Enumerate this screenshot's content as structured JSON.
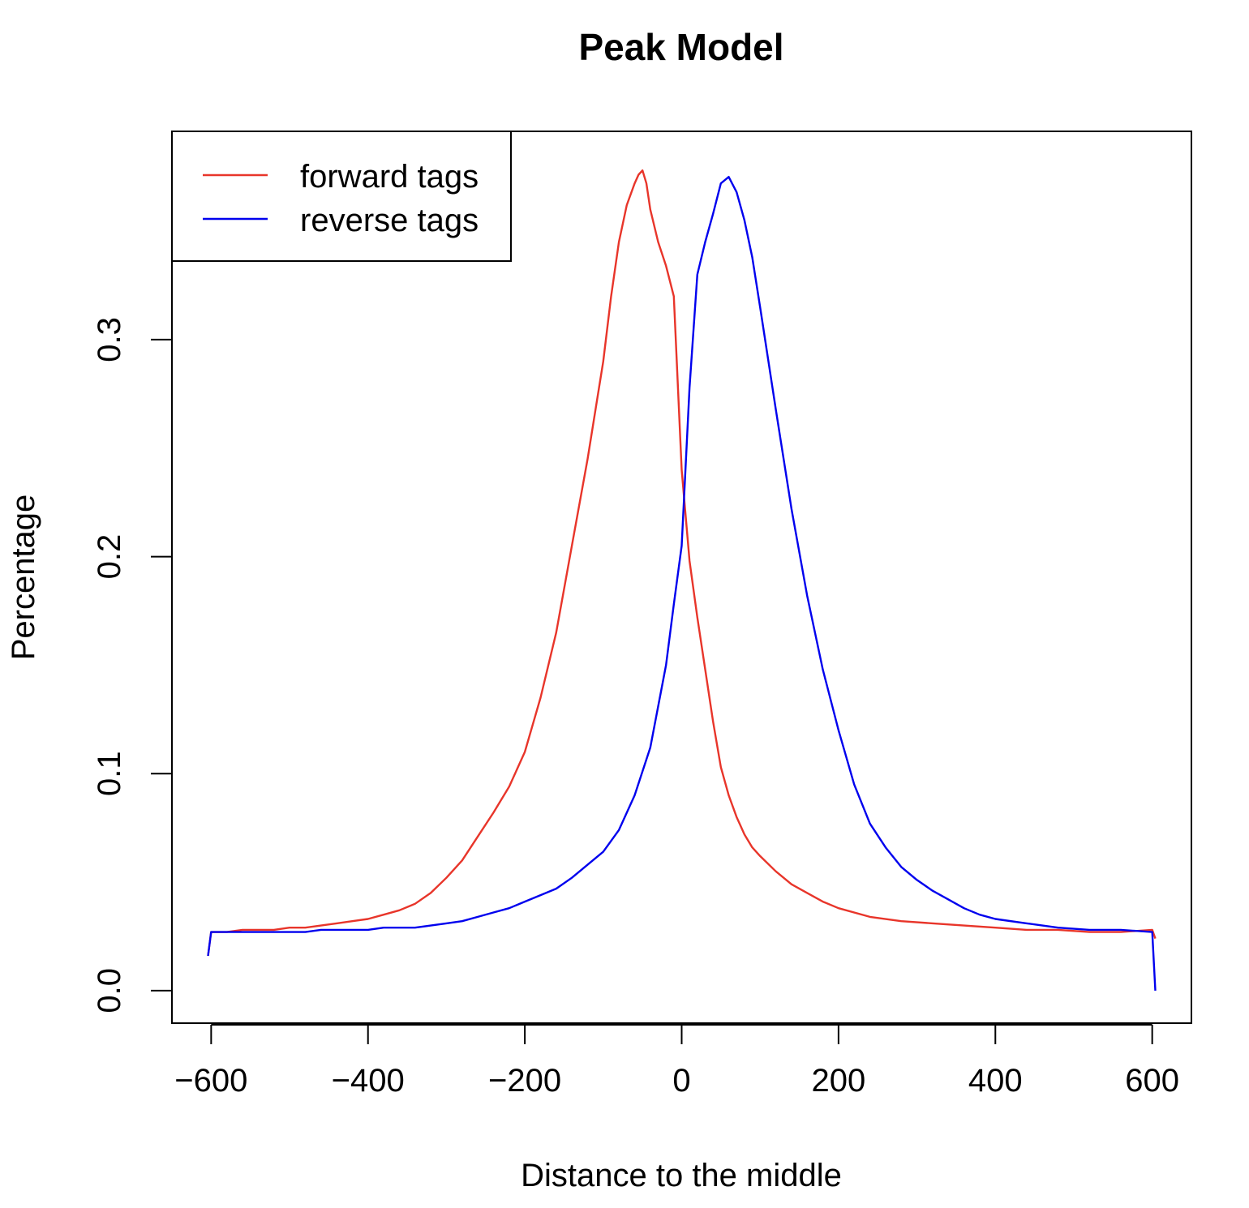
{
  "chart_data": {
    "type": "line",
    "title": "Peak Model",
    "xlabel": "Distance to the middle",
    "ylabel": "Percentage",
    "xlim": [
      -650,
      650
    ],
    "ylim": [
      -0.015,
      0.396
    ],
    "x_ticks": [
      -600,
      -400,
      -200,
      0,
      200,
      400,
      600
    ],
    "x_tick_labels": [
      "−600",
      "−400",
      "−200",
      "0",
      "200",
      "400",
      "600"
    ],
    "y_ticks": [
      0.0,
      0.1,
      0.2,
      0.3
    ],
    "y_tick_labels": [
      "0.0",
      "0.1",
      "0.2",
      "0.3"
    ],
    "grid": false,
    "legend_position": "top-left",
    "series": [
      {
        "name": "forward tags",
        "color": "#e8352a",
        "x": [
          -604,
          -600,
          -580,
          -560,
          -540,
          -520,
          -500,
          -480,
          -460,
          -440,
          -420,
          -400,
          -380,
          -360,
          -340,
          -320,
          -300,
          -280,
          -260,
          -240,
          -220,
          -200,
          -180,
          -160,
          -140,
          -120,
          -100,
          -90,
          -80,
          -70,
          -60,
          -55,
          -50,
          -45,
          -40,
          -30,
          -20,
          -10,
          0,
          10,
          20,
          30,
          40,
          50,
          60,
          70,
          80,
          90,
          100,
          120,
          140,
          160,
          180,
          200,
          240,
          280,
          320,
          360,
          400,
          440,
          480,
          520,
          560,
          600,
          604
        ],
        "y": [
          0.016,
          0.027,
          0.027,
          0.028,
          0.028,
          0.028,
          0.029,
          0.029,
          0.03,
          0.031,
          0.032,
          0.033,
          0.035,
          0.037,
          0.04,
          0.045,
          0.052,
          0.06,
          0.071,
          0.082,
          0.094,
          0.11,
          0.135,
          0.165,
          0.205,
          0.245,
          0.29,
          0.32,
          0.345,
          0.362,
          0.372,
          0.376,
          0.378,
          0.372,
          0.36,
          0.345,
          0.334,
          0.32,
          0.24,
          0.198,
          0.172,
          0.148,
          0.124,
          0.103,
          0.09,
          0.08,
          0.072,
          0.066,
          0.062,
          0.055,
          0.049,
          0.045,
          0.041,
          0.038,
          0.034,
          0.032,
          0.031,
          0.03,
          0.029,
          0.028,
          0.028,
          0.027,
          0.027,
          0.028,
          0.024
        ]
      },
      {
        "name": "reverse tags",
        "color": "#0000ee",
        "x": [
          -604,
          -600,
          -580,
          -560,
          -540,
          -520,
          -500,
          -480,
          -460,
          -440,
          -420,
          -400,
          -380,
          -360,
          -340,
          -320,
          -300,
          -280,
          -260,
          -240,
          -220,
          -200,
          -180,
          -160,
          -140,
          -120,
          -100,
          -80,
          -60,
          -40,
          -20,
          -10,
          0,
          10,
          20,
          30,
          40,
          50,
          60,
          70,
          80,
          90,
          100,
          120,
          140,
          160,
          180,
          200,
          220,
          240,
          260,
          280,
          300,
          320,
          340,
          360,
          380,
          400,
          440,
          480,
          520,
          560,
          600,
          604
        ],
        "y": [
          0.016,
          0.027,
          0.027,
          0.027,
          0.027,
          0.027,
          0.027,
          0.027,
          0.028,
          0.028,
          0.028,
          0.028,
          0.029,
          0.029,
          0.029,
          0.03,
          0.031,
          0.032,
          0.034,
          0.036,
          0.038,
          0.041,
          0.044,
          0.047,
          0.052,
          0.058,
          0.064,
          0.074,
          0.09,
          0.112,
          0.15,
          0.178,
          0.205,
          0.278,
          0.33,
          0.345,
          0.358,
          0.372,
          0.375,
          0.368,
          0.355,
          0.338,
          0.315,
          0.268,
          0.222,
          0.182,
          0.148,
          0.12,
          0.095,
          0.077,
          0.066,
          0.057,
          0.051,
          0.046,
          0.042,
          0.038,
          0.035,
          0.033,
          0.031,
          0.029,
          0.028,
          0.028,
          0.027,
          0.0
        ]
      }
    ]
  }
}
